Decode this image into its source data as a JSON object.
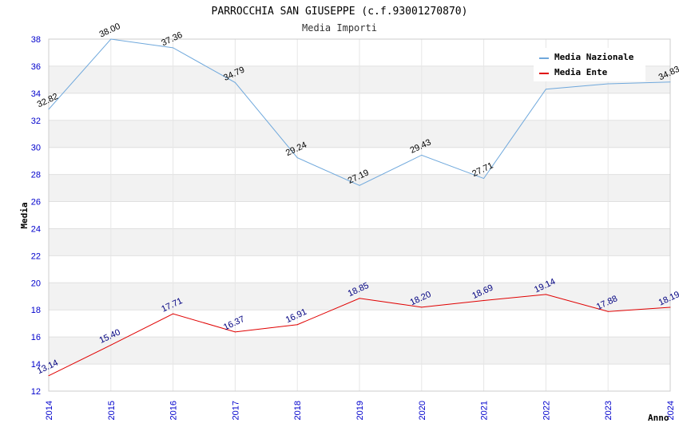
{
  "chart_data": {
    "type": "line",
    "title": "PARROCCHIA SAN GIUSEPPE (c.f.93001270870)",
    "subtitle": "Media Importi",
    "xlabel": "Anno",
    "ylabel": "Media",
    "ylim": [
      12,
      38
    ],
    "yticks": [
      "12",
      "14",
      "16",
      "18",
      "20",
      "22",
      "24",
      "26",
      "28",
      "30",
      "32",
      "34",
      "36",
      "38"
    ],
    "categories": [
      "2014",
      "2015",
      "2016",
      "2017",
      "2018",
      "2019",
      "2020",
      "2021",
      "2022",
      "2023",
      "2024"
    ],
    "series": [
      {
        "name": "Media Nazionale",
        "color": "#6fa8dc",
        "label_color": "#000000",
        "values": [
          32.82,
          38.0,
          37.36,
          34.79,
          29.24,
          27.19,
          29.43,
          27.71,
          34.3,
          34.7,
          34.83
        ],
        "labels": [
          "32.82",
          "38.00",
          "37.36",
          "34.79",
          "29.24",
          "27.19",
          "29.43",
          "27.71",
          "",
          "",
          "34.83"
        ]
      },
      {
        "name": "Media Ente",
        "color": "#e00000",
        "label_color": "#000080",
        "values": [
          13.14,
          15.4,
          17.71,
          16.37,
          16.91,
          18.85,
          18.2,
          18.69,
          19.14,
          17.88,
          18.19
        ],
        "labels": [
          "13.14",
          "15.40",
          "17.71",
          "16.37",
          "16.91",
          "18.85",
          "18.20",
          "18.69",
          "19.14",
          "17.88",
          "18.19"
        ]
      }
    ],
    "grid": true,
    "legend": "top-right"
  }
}
